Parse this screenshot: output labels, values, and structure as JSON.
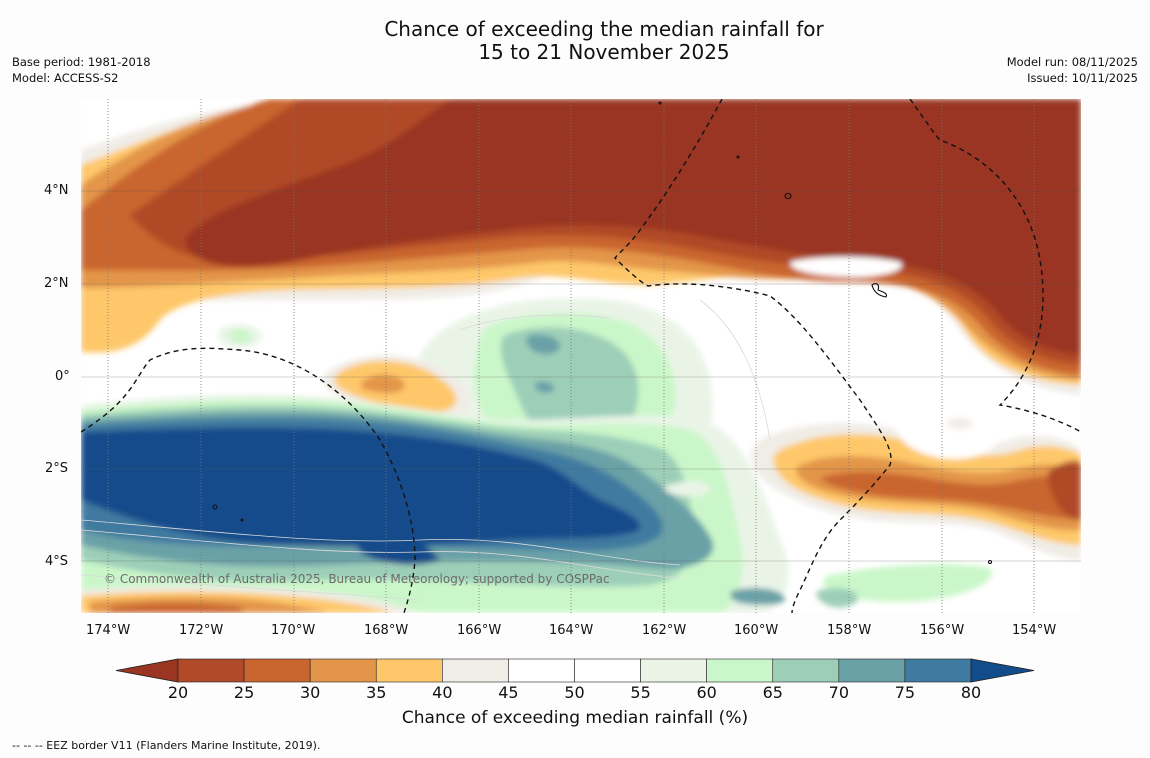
{
  "title": {
    "line1": "Chance of exceeding the median rainfall for",
    "line2": "15 to 21 November 2025"
  },
  "meta_left": {
    "base_period": "Base period: 1981-2018",
    "model": "Model: ACCESS-S2"
  },
  "meta_right": {
    "model_run": "Model run: 08/11/2025",
    "issued": "Issued: 10/11/2025"
  },
  "map": {
    "copyright": "© Commonwealth of Australia 2025, Bureau of Meteorology; supported by COSPPac",
    "lon_ticks": [
      "174°W",
      "172°W",
      "170°W",
      "168°W",
      "166°W",
      "164°W",
      "162°W",
      "160°W",
      "158°W",
      "156°W",
      "154°W"
    ],
    "lat_ticks": [
      "4°N",
      "2°N",
      "0°",
      "2°S",
      "4°S"
    ],
    "regions": {
      "north_dry_band": "20",
      "equatorial_wet_patch": "65",
      "south_wet_band": "80",
      "east_dry_patch": "20",
      "southeast_dry_patch": "25"
    }
  },
  "colorbar": {
    "title": "Chance of exceeding median rainfall (%)",
    "labels": [
      "20",
      "25",
      "30",
      "35",
      "40",
      "45",
      "50",
      "55",
      "60",
      "65",
      "70",
      "75",
      "80"
    ],
    "colors": [
      "#993520",
      "#b04a28",
      "#c9652f",
      "#e3954a",
      "#fec86a",
      "#f0ece6",
      "#ffffff",
      "#ffffff",
      "#e9f4e7",
      "#caf7c9",
      "#9dcfb8",
      "#6aa1a7",
      "#3f7aa0",
      "#134c8b"
    ]
  },
  "footnote": "--  --  -- EEZ border V11 (Flanders Marine Institute, 2019)."
}
